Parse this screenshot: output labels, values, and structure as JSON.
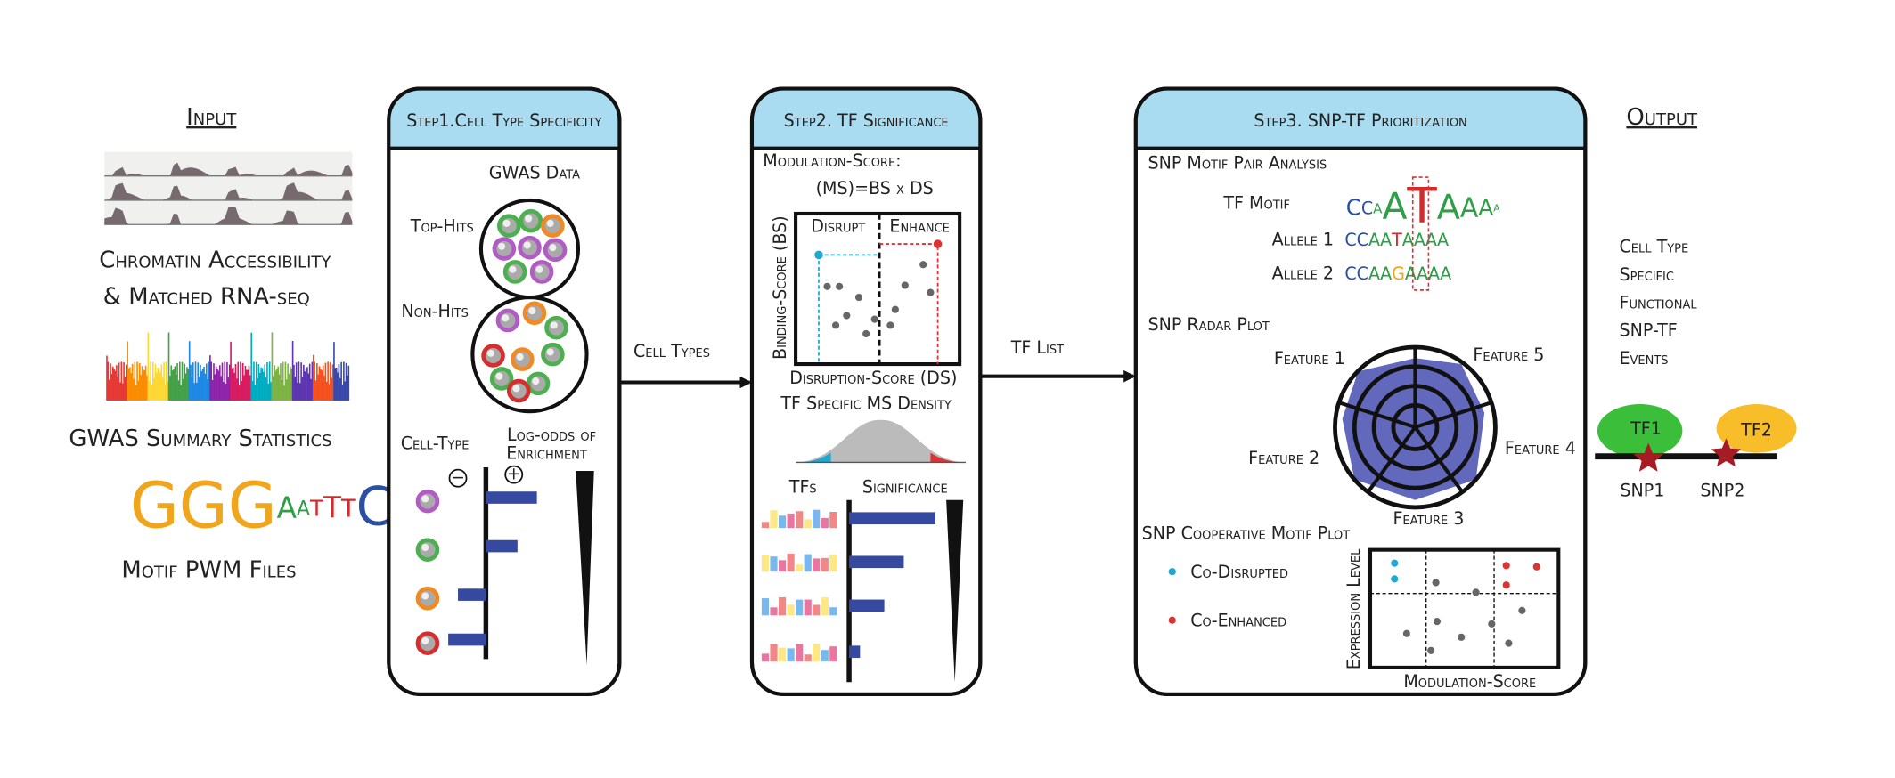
{
  "input": {
    "title": "Input",
    "chromatin_line1": "Chromatin Accessibility",
    "chromatin_line2": "& Matched RNA-seq",
    "gwas": "GWAS Summary Statistics",
    "motif_logo": "GGGAATTTCC",
    "motif": "Motif PWM Files"
  },
  "step1": {
    "title": "Step1.Cell Type Specificity",
    "gwas_data": "GWAS Data",
    "top_hits": "Top-Hits",
    "non_hits": "Non-Hits",
    "cell_type": "Cell-Type",
    "log_odds_line1": "Log-odds of",
    "log_odds_line2": "Enrichment",
    "minus": "−",
    "plus": "+"
  },
  "arrow1": {
    "label": "Cell Types"
  },
  "step2": {
    "title": "Step2. TF Significance",
    "ms_line1": "Modulation-Score:",
    "ms_line2": "(MS)=BS x DS",
    "disrupt": "Disrupt",
    "enhance": "Enhance",
    "y_axis": "Binding-Score (BS)",
    "x_axis": "Disruption-Score (DS)",
    "density": "TF Specific MS Density",
    "tfs": "TFs",
    "significance": "Significance"
  },
  "arrow2": {
    "label": "TF List"
  },
  "step3": {
    "title": "Step3. SNP-TF Prioritization",
    "pair_analysis": "SNP Motif Pair Analysis",
    "tf_motif": "TF Motif",
    "tf_motif_logo": "CCAATAAAA",
    "allele1": "Allele 1",
    "allele1_seq": "CCAATAAAA",
    "allele2": "Allele 2",
    "allele2_seq": "CCAAGAAAA",
    "radar": "SNP Radar Plot",
    "features": [
      "Feature 1",
      "Feature 5",
      "Feature 2",
      "Feature 4",
      "Feature 3"
    ],
    "coop": "SNP Cooperative Motif Plot",
    "co_disrupted": "Co-Disrupted",
    "co_enhanced": "Co-Enhanced",
    "y_axis": "Expression Level",
    "x_axis": "Modulation-Score"
  },
  "output": {
    "title": "Output",
    "lines": [
      "Cell Type",
      "Specific",
      "Functional",
      "SNP-TF",
      "Events"
    ],
    "tf1": "TF1",
    "tf2": "TF2",
    "snp1": "SNP1",
    "snp2": "SNP2"
  }
}
